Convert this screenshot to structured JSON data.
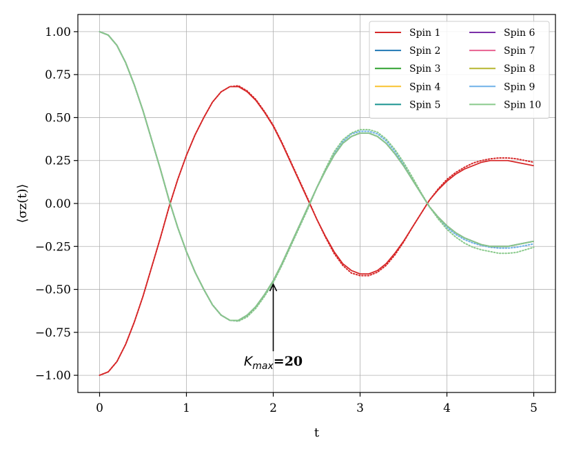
{
  "chart_data": {
    "type": "line",
    "xlabel": "t",
    "ylabel": "⟨σz(t)⟩",
    "xlim": [
      -0.25,
      5.25
    ],
    "ylim": [
      -1.1,
      1.1
    ],
    "xticks": [
      0,
      1,
      2,
      3,
      4,
      5
    ],
    "xtick_labels": [
      "0",
      "1",
      "2",
      "3",
      "4",
      "5"
    ],
    "yticks": [
      -1.0,
      -0.75,
      -0.5,
      -0.25,
      0.0,
      0.25,
      0.5,
      0.75,
      1.0
    ],
    "ytick_labels": [
      "−1.00",
      "−0.75",
      "−0.50",
      "−0.25",
      "0.00",
      "0.25",
      "0.50",
      "0.75",
      "1.00"
    ],
    "grid": true,
    "legend": {
      "placement": "top-right",
      "columns": 2
    },
    "x": [
      0,
      0.1,
      0.2,
      0.3,
      0.4,
      0.5,
      0.6,
      0.7,
      0.8,
      0.9,
      1.0,
      1.1,
      1.2,
      1.3,
      1.4,
      1.5,
      1.6,
      1.7,
      1.8,
      1.9,
      2.0,
      2.1,
      2.2,
      2.3,
      2.4,
      2.5,
      2.6,
      2.7,
      2.8,
      2.9,
      3.0,
      3.1,
      3.2,
      3.3,
      3.4,
      3.5,
      3.6,
      3.7,
      3.8,
      3.9,
      4.0,
      4.1,
      4.2,
      4.3,
      4.4,
      4.5,
      4.6,
      4.7,
      4.8,
      4.9,
      5.0
    ],
    "series": [
      {
        "name": "Spin 1",
        "color": "#d62728",
        "style": "solid",
        "values": [
          -1.0,
          -0.98,
          -0.92,
          -0.82,
          -0.69,
          -0.54,
          -0.37,
          -0.2,
          -0.02,
          0.14,
          0.28,
          0.4,
          0.5,
          0.59,
          0.65,
          0.68,
          0.68,
          0.65,
          0.6,
          0.53,
          0.45,
          0.35,
          0.24,
          0.13,
          0.02,
          -0.09,
          -0.19,
          -0.28,
          -0.35,
          -0.39,
          -0.41,
          -0.41,
          -0.39,
          -0.35,
          -0.29,
          -0.22,
          -0.14,
          -0.06,
          0.02,
          0.08,
          0.13,
          0.17,
          0.2,
          0.22,
          0.24,
          0.25,
          0.25,
          0.25,
          0.24,
          0.23,
          0.22
        ]
      },
      {
        "name": "Spin 2",
        "color": "#1f77b4",
        "style": "solid",
        "values": [
          1.0,
          0.98,
          0.92,
          0.82,
          0.69,
          0.54,
          0.37,
          0.2,
          0.02,
          -0.14,
          -0.28,
          -0.4,
          -0.5,
          -0.59,
          -0.65,
          -0.68,
          -0.68,
          -0.65,
          -0.6,
          -0.53,
          -0.45,
          -0.35,
          -0.24,
          -0.13,
          -0.02,
          0.09,
          0.19,
          0.28,
          0.35,
          0.39,
          0.41,
          0.41,
          0.39,
          0.35,
          0.29,
          0.22,
          0.14,
          0.06,
          -0.02,
          -0.08,
          -0.13,
          -0.17,
          -0.2,
          -0.22,
          -0.24,
          -0.25,
          -0.25,
          -0.25,
          -0.24,
          -0.23,
          -0.22
        ]
      },
      {
        "name": "Spin 3",
        "color": "#2ca02c",
        "style": "solid",
        "values": [
          1.0,
          0.98,
          0.92,
          0.82,
          0.69,
          0.54,
          0.37,
          0.2,
          0.02,
          -0.14,
          -0.28,
          -0.4,
          -0.5,
          -0.59,
          -0.65,
          -0.68,
          -0.68,
          -0.65,
          -0.6,
          -0.53,
          -0.45,
          -0.35,
          -0.24,
          -0.13,
          -0.02,
          0.09,
          0.19,
          0.28,
          0.35,
          0.39,
          0.41,
          0.41,
          0.39,
          0.35,
          0.29,
          0.22,
          0.14,
          0.06,
          -0.02,
          -0.08,
          -0.13,
          -0.17,
          -0.2,
          -0.22,
          -0.24,
          -0.25,
          -0.25,
          -0.25,
          -0.24,
          -0.23,
          -0.22
        ]
      },
      {
        "name": "Spin 4",
        "color": "#f9c22e",
        "style": "solid",
        "values": [
          1.0,
          0.98,
          0.92,
          0.82,
          0.69,
          0.54,
          0.37,
          0.2,
          0.02,
          -0.14,
          -0.28,
          -0.4,
          -0.5,
          -0.59,
          -0.65,
          -0.68,
          -0.68,
          -0.65,
          -0.6,
          -0.53,
          -0.45,
          -0.35,
          -0.24,
          -0.13,
          -0.02,
          0.09,
          0.19,
          0.28,
          0.35,
          0.39,
          0.41,
          0.41,
          0.39,
          0.35,
          0.29,
          0.22,
          0.14,
          0.06,
          -0.02,
          -0.08,
          -0.13,
          -0.17,
          -0.2,
          -0.22,
          -0.24,
          -0.25,
          -0.25,
          -0.25,
          -0.24,
          -0.23,
          -0.22
        ]
      },
      {
        "name": "Spin 5",
        "color": "#17928f",
        "style": "solid",
        "values": [
          1.0,
          0.98,
          0.92,
          0.82,
          0.69,
          0.54,
          0.37,
          0.2,
          0.02,
          -0.14,
          -0.28,
          -0.4,
          -0.5,
          -0.59,
          -0.65,
          -0.68,
          -0.68,
          -0.65,
          -0.6,
          -0.53,
          -0.45,
          -0.35,
          -0.24,
          -0.13,
          -0.02,
          0.09,
          0.19,
          0.28,
          0.35,
          0.39,
          0.41,
          0.41,
          0.39,
          0.35,
          0.29,
          0.22,
          0.14,
          0.06,
          -0.02,
          -0.08,
          -0.13,
          -0.17,
          -0.2,
          -0.22,
          -0.24,
          -0.25,
          -0.25,
          -0.25,
          -0.24,
          -0.23,
          -0.22
        ]
      },
      {
        "name": "Spin 6",
        "color": "#7b2fa8",
        "style": "solid",
        "values": [
          1.0,
          0.98,
          0.92,
          0.82,
          0.69,
          0.54,
          0.37,
          0.2,
          0.02,
          -0.14,
          -0.28,
          -0.4,
          -0.5,
          -0.59,
          -0.65,
          -0.68,
          -0.68,
          -0.65,
          -0.6,
          -0.53,
          -0.45,
          -0.35,
          -0.24,
          -0.13,
          -0.02,
          0.09,
          0.19,
          0.28,
          0.35,
          0.39,
          0.41,
          0.41,
          0.39,
          0.35,
          0.29,
          0.22,
          0.14,
          0.06,
          -0.02,
          -0.08,
          -0.13,
          -0.17,
          -0.2,
          -0.22,
          -0.24,
          -0.25,
          -0.25,
          -0.25,
          -0.24,
          -0.23,
          -0.22
        ]
      },
      {
        "name": "Spin 7",
        "color": "#e8608f",
        "style": "solid",
        "values": [
          1.0,
          0.98,
          0.92,
          0.82,
          0.69,
          0.54,
          0.37,
          0.2,
          0.02,
          -0.14,
          -0.28,
          -0.4,
          -0.5,
          -0.59,
          -0.65,
          -0.68,
          -0.68,
          -0.65,
          -0.6,
          -0.53,
          -0.45,
          -0.35,
          -0.24,
          -0.13,
          -0.02,
          0.09,
          0.19,
          0.28,
          0.35,
          0.39,
          0.41,
          0.41,
          0.39,
          0.35,
          0.29,
          0.22,
          0.14,
          0.06,
          -0.02,
          -0.08,
          -0.13,
          -0.17,
          -0.2,
          -0.22,
          -0.24,
          -0.25,
          -0.25,
          -0.25,
          -0.24,
          -0.23,
          -0.22
        ]
      },
      {
        "name": "Spin 8",
        "color": "#b5b52d",
        "style": "solid",
        "values": [
          1.0,
          0.98,
          0.92,
          0.82,
          0.69,
          0.54,
          0.37,
          0.2,
          0.02,
          -0.14,
          -0.28,
          -0.4,
          -0.5,
          -0.59,
          -0.65,
          -0.68,
          -0.68,
          -0.65,
          -0.6,
          -0.53,
          -0.45,
          -0.35,
          -0.24,
          -0.13,
          -0.02,
          0.09,
          0.19,
          0.28,
          0.35,
          0.39,
          0.41,
          0.41,
          0.39,
          0.35,
          0.29,
          0.22,
          0.14,
          0.06,
          -0.02,
          -0.08,
          -0.13,
          -0.17,
          -0.2,
          -0.22,
          -0.24,
          -0.25,
          -0.25,
          -0.25,
          -0.24,
          -0.23,
          -0.22
        ]
      },
      {
        "name": "Spin 9",
        "color": "#6fb1e8",
        "style": "solid",
        "values": [
          1.0,
          0.98,
          0.92,
          0.82,
          0.69,
          0.54,
          0.37,
          0.2,
          0.02,
          -0.14,
          -0.28,
          -0.4,
          -0.5,
          -0.59,
          -0.65,
          -0.68,
          -0.68,
          -0.65,
          -0.6,
          -0.53,
          -0.45,
          -0.35,
          -0.24,
          -0.13,
          -0.02,
          0.09,
          0.19,
          0.28,
          0.35,
          0.39,
          0.41,
          0.41,
          0.39,
          0.35,
          0.29,
          0.22,
          0.14,
          0.06,
          -0.02,
          -0.08,
          -0.13,
          -0.17,
          -0.2,
          -0.22,
          -0.24,
          -0.25,
          -0.25,
          -0.25,
          -0.24,
          -0.23,
          -0.22
        ]
      },
      {
        "name": "Spin 10",
        "color": "#88c98a",
        "style": "solid",
        "values": [
          1.0,
          0.98,
          0.92,
          0.82,
          0.69,
          0.54,
          0.37,
          0.2,
          0.02,
          -0.14,
          -0.28,
          -0.4,
          -0.5,
          -0.59,
          -0.65,
          -0.68,
          -0.68,
          -0.65,
          -0.6,
          -0.53,
          -0.45,
          -0.35,
          -0.24,
          -0.13,
          -0.02,
          0.09,
          0.19,
          0.28,
          0.35,
          0.39,
          0.41,
          0.41,
          0.39,
          0.35,
          0.29,
          0.22,
          0.14,
          0.06,
          -0.02,
          -0.08,
          -0.13,
          -0.17,
          -0.2,
          -0.22,
          -0.24,
          -0.25,
          -0.25,
          -0.25,
          -0.24,
          -0.23,
          -0.22
        ]
      },
      {
        "color": "#d62728",
        "style": "dotted",
        "values": [
          -1.0,
          -0.98,
          -0.92,
          -0.82,
          -0.69,
          -0.54,
          -0.37,
          -0.2,
          -0.02,
          0.14,
          0.28,
          0.4,
          0.5,
          0.59,
          0.65,
          0.68,
          0.685,
          0.655,
          0.605,
          0.535,
          0.455,
          0.355,
          0.245,
          0.135,
          0.025,
          -0.09,
          -0.195,
          -0.29,
          -0.36,
          -0.405,
          -0.42,
          -0.42,
          -0.4,
          -0.36,
          -0.3,
          -0.225,
          -0.14,
          -0.06,
          0.02,
          0.085,
          0.14,
          0.18,
          0.21,
          0.235,
          0.25,
          0.26,
          0.265,
          0.265,
          0.26,
          0.25,
          0.24
        ]
      },
      {
        "color": "#6fb1e8",
        "style": "dotted",
        "values": [
          1.0,
          0.98,
          0.92,
          0.82,
          0.69,
          0.54,
          0.37,
          0.2,
          0.02,
          -0.14,
          -0.28,
          -0.4,
          -0.5,
          -0.59,
          -0.65,
          -0.68,
          -0.685,
          -0.655,
          -0.605,
          -0.535,
          -0.455,
          -0.355,
          -0.245,
          -0.135,
          -0.025,
          0.09,
          0.195,
          0.29,
          0.36,
          0.405,
          0.42,
          0.42,
          0.405,
          0.365,
          0.305,
          0.23,
          0.145,
          0.06,
          -0.02,
          -0.085,
          -0.14,
          -0.18,
          -0.21,
          -0.23,
          -0.245,
          -0.255,
          -0.26,
          -0.26,
          -0.255,
          -0.245,
          -0.235
        ]
      },
      {
        "color": "#88c98a",
        "style": "dotted",
        "values": [
          1.0,
          0.98,
          0.92,
          0.82,
          0.69,
          0.54,
          0.37,
          0.2,
          0.02,
          -0.14,
          -0.28,
          -0.4,
          -0.5,
          -0.59,
          -0.65,
          -0.68,
          -0.685,
          -0.66,
          -0.61,
          -0.54,
          -0.46,
          -0.36,
          -0.25,
          -0.14,
          -0.03,
          0.09,
          0.2,
          0.3,
          0.37,
          0.41,
          0.43,
          0.43,
          0.415,
          0.375,
          0.315,
          0.24,
          0.155,
          0.065,
          -0.02,
          -0.09,
          -0.15,
          -0.195,
          -0.23,
          -0.255,
          -0.27,
          -0.28,
          -0.29,
          -0.29,
          -0.285,
          -0.27,
          -0.255
        ]
      }
    ],
    "annotation": {
      "text_symbol": "K",
      "text_subscript": "max",
      "text_value": "=20",
      "arrow_from": [
        2.0,
        -0.86
      ],
      "arrow_to": [
        2.0,
        -0.47
      ],
      "text_anchor": [
        2.0,
        -0.92
      ]
    }
  }
}
